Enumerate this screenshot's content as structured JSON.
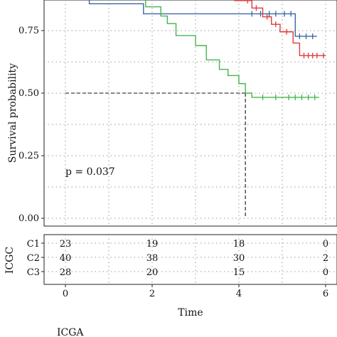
{
  "chart_data": [
    {
      "type": "line",
      "subtype": "kaplan-meier",
      "ylabel": "Survival probability",
      "xlabel": "",
      "xlim": [
        -0.5,
        6.2
      ],
      "ylim": [
        -0.03,
        1.02
      ],
      "y_ticks": [
        "0.00",
        "0.25",
        "0.50",
        "0.75"
      ],
      "x_ticks_visible": false,
      "grid": true,
      "annotation": "p = 0.037",
      "median_reference": {
        "y": 0.5,
        "x": 4.15
      },
      "series": [
        {
          "color": "#3a66a8",
          "steps": [
            [
              0,
              1.0
            ],
            [
              0.55,
              0.857
            ],
            [
              1.8,
              0.817
            ],
            [
              5.3,
              0.727
            ],
            [
              5.8,
              0.727
            ]
          ],
          "censored": [
            [
              4.3,
              0.817
            ],
            [
              4.5,
              0.817
            ],
            [
              4.7,
              0.817
            ],
            [
              4.85,
              0.817
            ],
            [
              5.05,
              0.817
            ],
            [
              5.2,
              0.817
            ],
            [
              5.4,
              0.727
            ],
            [
              5.55,
              0.727
            ],
            [
              5.7,
              0.727
            ]
          ]
        },
        {
          "color": "#e03a3c",
          "steps": [
            [
              0,
              1.0
            ],
            [
              3.9,
              0.87
            ],
            [
              4.3,
              0.84
            ],
            [
              4.55,
              0.805
            ],
            [
              4.75,
              0.775
            ],
            [
              4.95,
              0.745
            ],
            [
              5.25,
              0.7
            ],
            [
              5.4,
              0.65
            ],
            [
              6.0,
              0.65
            ]
          ],
          "censored": [
            [
              4.2,
              0.87
            ],
            [
              4.4,
              0.84
            ],
            [
              4.65,
              0.805
            ],
            [
              4.85,
              0.775
            ],
            [
              5.1,
              0.745
            ],
            [
              5.5,
              0.65
            ],
            [
              5.6,
              0.65
            ],
            [
              5.7,
              0.65
            ],
            [
              5.8,
              0.65
            ],
            [
              5.95,
              0.65
            ]
          ]
        },
        {
          "color": "#45b54a",
          "steps": [
            [
              0,
              1.0
            ],
            [
              1.0,
              0.92
            ],
            [
              1.55,
              0.885
            ],
            [
              1.85,
              0.845
            ],
            [
              2.2,
              0.808
            ],
            [
              2.35,
              0.778
            ],
            [
              2.55,
              0.73
            ],
            [
              3.0,
              0.69
            ],
            [
              3.25,
              0.633
            ],
            [
              3.55,
              0.595
            ],
            [
              3.75,
              0.57
            ],
            [
              4.0,
              0.538
            ],
            [
              4.15,
              0.5
            ],
            [
              4.3,
              0.483
            ],
            [
              5.85,
              0.483
            ]
          ],
          "censored": [
            [
              4.55,
              0.483
            ],
            [
              4.85,
              0.483
            ],
            [
              5.15,
              0.483
            ],
            [
              5.3,
              0.483
            ],
            [
              5.45,
              0.483
            ],
            [
              5.6,
              0.483
            ],
            [
              5.75,
              0.483
            ]
          ]
        }
      ]
    },
    {
      "type": "table",
      "title": "",
      "group_label": "ICGC",
      "xlabel": "Time",
      "xlim": [
        -0.5,
        6.2
      ],
      "x_ticks": [
        0,
        2,
        4,
        6
      ],
      "rows": [
        {
          "label": "C1",
          "color": "#3a66a8",
          "values": [
            [
              0,
              "23"
            ],
            [
              2,
              "19"
            ],
            [
              4,
              "18"
            ],
            [
              6,
              "0"
            ]
          ]
        },
        {
          "label": "C2",
          "color": "#e03a3c",
          "values": [
            [
              0,
              "40"
            ],
            [
              2,
              "38"
            ],
            [
              4,
              "30"
            ],
            [
              6,
              "2"
            ]
          ]
        },
        {
          "label": "C3",
          "color": "#45b54a",
          "values": [
            [
              0,
              "28"
            ],
            [
              2,
              "20"
            ],
            [
              4,
              "15"
            ],
            [
              6,
              "0"
            ]
          ]
        }
      ]
    }
  ],
  "footer_caption": "ICGA"
}
